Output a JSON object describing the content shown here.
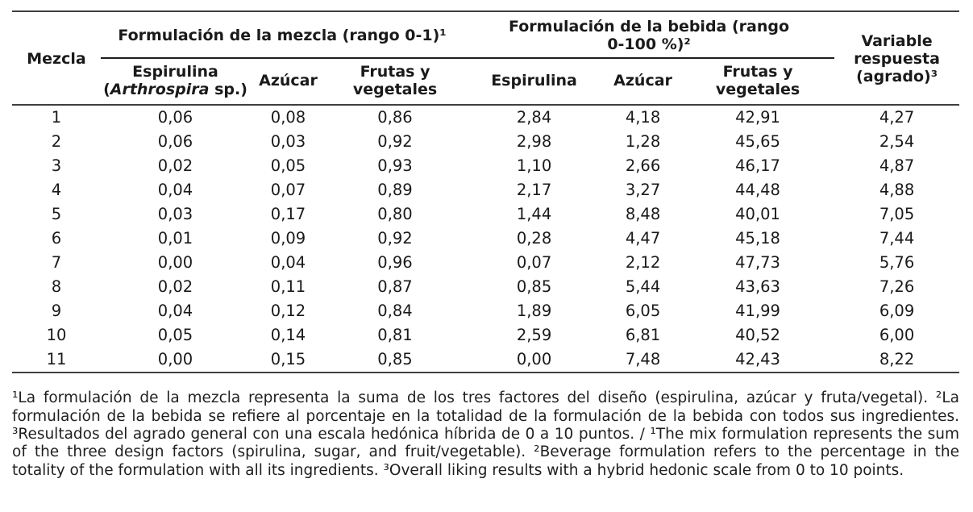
{
  "table": {
    "corner_header": "Mezcla",
    "group1": {
      "label": "Formulación de la mezcla (rango 0-1)¹"
    },
    "group2": {
      "line1": "Formulación de la bebida (rango",
      "line2": "0-100 %)²"
    },
    "response_header": "Variable respuesta (agrado)³",
    "sub": {
      "esp_mix_name": "Espirulina",
      "esp_mix_pre": "(",
      "esp_mix_latin": "Arthrospira",
      "esp_mix_post": " sp.)",
      "azucar_mix": "Azúcar",
      "frutas_mix": "Frutas y vegetales",
      "esp_bev": "Espirulina",
      "azucar_bev": "Azúcar",
      "frutas_bev": "Frutas y vegetales"
    },
    "rows": [
      [
        "1",
        "0,06",
        "0,08",
        "0,86",
        "2,84",
        "4,18",
        "42,91",
        "4,27"
      ],
      [
        "2",
        "0,06",
        "0,03",
        "0,92",
        "2,98",
        "1,28",
        "45,65",
        "2,54"
      ],
      [
        "3",
        "0,02",
        "0,05",
        "0,93",
        "1,10",
        "2,66",
        "46,17",
        "4,87"
      ],
      [
        "4",
        "0,04",
        "0,07",
        "0,89",
        "2,17",
        "3,27",
        "44,48",
        "4,88"
      ],
      [
        "5",
        "0,03",
        "0,17",
        "0,80",
        "1,44",
        "8,48",
        "40,01",
        "7,05"
      ],
      [
        "6",
        "0,01",
        "0,09",
        "0,92",
        "0,28",
        "4,47",
        "45,18",
        "7,44"
      ],
      [
        "7",
        "0,00",
        "0,04",
        "0,96",
        "0,07",
        "2,12",
        "47,73",
        "5,76"
      ],
      [
        "8",
        "0,02",
        "0,11",
        "0,87",
        "0,85",
        "5,44",
        "43,63",
        "7,26"
      ],
      [
        "9",
        "0,04",
        "0,12",
        "0,84",
        "1,89",
        "6,05",
        "41,99",
        "6,09"
      ],
      [
        "10",
        "0,05",
        "0,14",
        "0,81",
        "2,59",
        "6,81",
        "40,52",
        "6,00"
      ],
      [
        "11",
        "0,00",
        "0,15",
        "0,85",
        "0,00",
        "7,48",
        "42,43",
        "8,22"
      ]
    ]
  },
  "footnote": {
    "text": "¹La formulación de la mezcla representa la suma de los tres factores del diseño (espirulina, azúcar y fruta/vegetal). ²La formulación de la bebida se refiere al porcentaje en la totalidad de la formulación de la bebida con todos sus ingredientes. ³Resultados del agrado general con una escala hedónica híbrida de 0 a 10 puntos. / ¹The mix formulation represents the sum of the three design factors (spirulina, sugar, and fruit/vegetable). ²Beverage formulation refers to the percentage in the totality of the formulation with all its ingredients. ³Overall liking results with a hybrid hedonic scale from 0 to 10 points."
  }
}
